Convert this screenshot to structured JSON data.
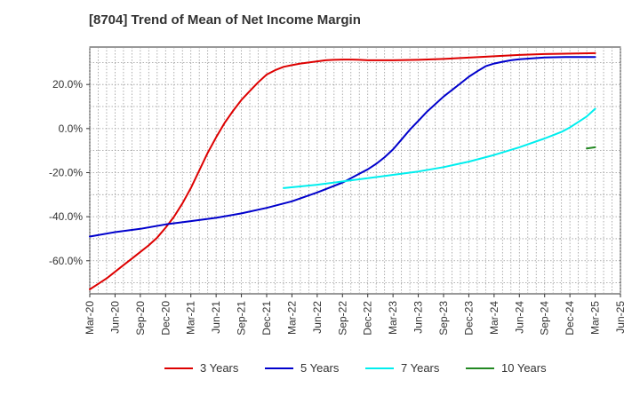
{
  "chart_data": {
    "type": "line",
    "title": "[8704]  Trend of Mean of Net Income Margin",
    "xlabel": "",
    "ylabel": "",
    "x_ticks": [
      "Mar-20",
      "Jun-20",
      "Sep-20",
      "Dec-20",
      "Mar-21",
      "Jun-21",
      "Sep-21",
      "Dec-21",
      "Mar-22",
      "Jun-22",
      "Sep-22",
      "Dec-22",
      "Mar-23",
      "Jun-23",
      "Sep-23",
      "Dec-23",
      "Mar-24",
      "Jun-24",
      "Sep-24",
      "Dec-24",
      "Mar-25",
      "Jun-25"
    ],
    "y_ticks": [
      -60,
      -40,
      -20,
      0,
      20
    ],
    "y_tick_labels": [
      "-60.0%",
      "-40.0%",
      "-20.0%",
      "0.0%",
      "20.0%"
    ],
    "ylim": [
      -75,
      37
    ],
    "grid": true,
    "legend_position": "bottom",
    "series": [
      {
        "name": "3 Years",
        "color": "#dd0000",
        "points": [
          {
            "x": "Mar-20",
            "y": -73
          },
          {
            "x": "Apr-20",
            "y": -70.5
          },
          {
            "x": "May-20",
            "y": -68
          },
          {
            "x": "Jun-20",
            "y": -65
          },
          {
            "x": "Jul-20",
            "y": -62
          },
          {
            "x": "Aug-20",
            "y": -59
          },
          {
            "x": "Sep-20",
            "y": -56
          },
          {
            "x": "Oct-20",
            "y": -53
          },
          {
            "x": "Nov-20",
            "y": -49.5
          },
          {
            "x": "Dec-20",
            "y": -45
          },
          {
            "x": "Jan-21",
            "y": -40
          },
          {
            "x": "Feb-21",
            "y": -34
          },
          {
            "x": "Mar-21",
            "y": -27
          },
          {
            "x": "Apr-21",
            "y": -19
          },
          {
            "x": "May-21",
            "y": -11
          },
          {
            "x": "Jun-21",
            "y": -4
          },
          {
            "x": "Jul-21",
            "y": 2.5
          },
          {
            "x": "Aug-21",
            "y": 8
          },
          {
            "x": "Sep-21",
            "y": 13
          },
          {
            "x": "Oct-21",
            "y": 17
          },
          {
            "x": "Nov-21",
            "y": 21
          },
          {
            "x": "Dec-21",
            "y": 24.5
          },
          {
            "x": "Jan-22",
            "y": 26.5
          },
          {
            "x": "Feb-22",
            "y": 28
          },
          {
            "x": "Mar-22",
            "y": 28.8
          },
          {
            "x": "Apr-22",
            "y": 29.5
          },
          {
            "x": "May-22",
            "y": 30
          },
          {
            "x": "Jun-22",
            "y": 30.5
          },
          {
            "x": "Jul-22",
            "y": 31
          },
          {
            "x": "Aug-22",
            "y": 31.2
          },
          {
            "x": "Sep-22",
            "y": 31.3
          },
          {
            "x": "Oct-22",
            "y": 31.3
          },
          {
            "x": "Nov-22",
            "y": 31.2
          },
          {
            "x": "Dec-22",
            "y": 31
          },
          {
            "x": "Mar-23",
            "y": 31
          },
          {
            "x": "Jun-23",
            "y": 31.2
          },
          {
            "x": "Sep-23",
            "y": 31.6
          },
          {
            "x": "Dec-23",
            "y": 32.2
          },
          {
            "x": "Mar-24",
            "y": 32.8
          },
          {
            "x": "Jun-24",
            "y": 33.4
          },
          {
            "x": "Sep-24",
            "y": 33.8
          },
          {
            "x": "Dec-24",
            "y": 34
          },
          {
            "x": "Mar-25",
            "y": 34.2
          }
        ]
      },
      {
        "name": "5 Years",
        "color": "#0000cc",
        "points": [
          {
            "x": "Mar-20",
            "y": -49
          },
          {
            "x": "Jun-20",
            "y": -47
          },
          {
            "x": "Sep-20",
            "y": -45.5
          },
          {
            "x": "Dec-20",
            "y": -43.5
          },
          {
            "x": "Mar-21",
            "y": -42
          },
          {
            "x": "Jun-21",
            "y": -40.5
          },
          {
            "x": "Sep-21",
            "y": -38.5
          },
          {
            "x": "Dec-21",
            "y": -36
          },
          {
            "x": "Mar-22",
            "y": -33
          },
          {
            "x": "Jun-22",
            "y": -29
          },
          {
            "x": "Sep-22",
            "y": -24.5
          },
          {
            "x": "Oct-22",
            "y": -22.5
          },
          {
            "x": "Nov-22",
            "y": -20.5
          },
          {
            "x": "Dec-22",
            "y": -18.5
          },
          {
            "x": "Jan-23",
            "y": -16
          },
          {
            "x": "Feb-23",
            "y": -13
          },
          {
            "x": "Mar-23",
            "y": -9.5
          },
          {
            "x": "Apr-23",
            "y": -5
          },
          {
            "x": "May-23",
            "y": -0.5
          },
          {
            "x": "Jun-23",
            "y": 3.5
          },
          {
            "x": "Jul-23",
            "y": 7.5
          },
          {
            "x": "Aug-23",
            "y": 11
          },
          {
            "x": "Sep-23",
            "y": 14.5
          },
          {
            "x": "Oct-23",
            "y": 17.5
          },
          {
            "x": "Nov-23",
            "y": 20.5
          },
          {
            "x": "Dec-23",
            "y": 23.5
          },
          {
            "x": "Jan-24",
            "y": 26
          },
          {
            "x": "Feb-24",
            "y": 28.3
          },
          {
            "x": "Mar-24",
            "y": 29.5
          },
          {
            "x": "Apr-24",
            "y": 30.3
          },
          {
            "x": "May-24",
            "y": 31
          },
          {
            "x": "Jun-24",
            "y": 31.5
          },
          {
            "x": "Sep-24",
            "y": 32.3
          },
          {
            "x": "Dec-24",
            "y": 32.5
          },
          {
            "x": "Mar-25",
            "y": 32.5
          }
        ]
      },
      {
        "name": "7 Years",
        "color": "#00eeee",
        "points": [
          {
            "x": "Feb-22",
            "y": -27
          },
          {
            "x": "Jun-22",
            "y": -25.5
          },
          {
            "x": "Sep-22",
            "y": -24
          },
          {
            "x": "Dec-22",
            "y": -22.5
          },
          {
            "x": "Mar-23",
            "y": -21
          },
          {
            "x": "Jun-23",
            "y": -19.5
          },
          {
            "x": "Sep-23",
            "y": -17.5
          },
          {
            "x": "Dec-23",
            "y": -15
          },
          {
            "x": "Mar-24",
            "y": -12
          },
          {
            "x": "Jun-24",
            "y": -8.5
          },
          {
            "x": "Sep-24",
            "y": -4.5
          },
          {
            "x": "Oct-24",
            "y": -3
          },
          {
            "x": "Nov-24",
            "y": -1.5
          },
          {
            "x": "Dec-24",
            "y": 0.5
          },
          {
            "x": "Jan-25",
            "y": 3
          },
          {
            "x": "Feb-25",
            "y": 5.5
          },
          {
            "x": "Mar-25",
            "y": 9
          }
        ]
      },
      {
        "name": "10 Years",
        "color": "#228822",
        "points": [
          {
            "x": "Feb-25",
            "y": -9
          },
          {
            "x": "Mar-25",
            "y": -8.5
          }
        ]
      }
    ]
  }
}
